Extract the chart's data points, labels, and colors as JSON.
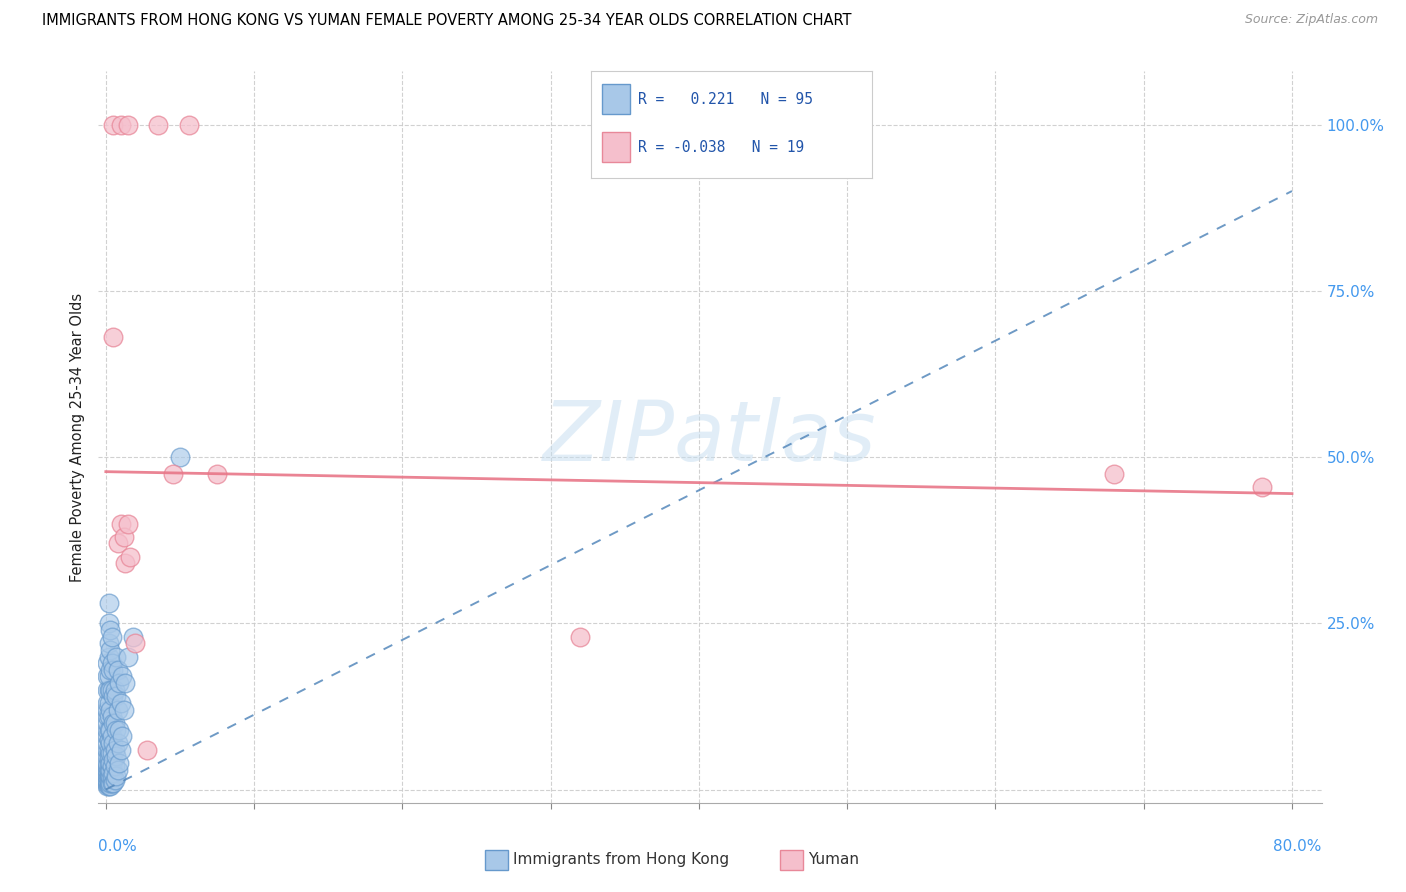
{
  "title": "IMMIGRANTS FROM HONG KONG VS YUMAN FEMALE POVERTY AMONG 25-34 YEAR OLDS CORRELATION CHART",
  "source": "Source: ZipAtlas.com",
  "ylabel": "Female Poverty Among 25-34 Year Olds",
  "ytick_labels": [
    "",
    "25.0%",
    "50.0%",
    "75.0%",
    "100.0%"
  ],
  "ytick_values": [
    0.0,
    0.25,
    0.5,
    0.75,
    1.0
  ],
  "xlim": [
    -0.005,
    0.82
  ],
  "ylim": [
    -0.02,
    1.08
  ],
  "R_blue": 0.221,
  "N_blue": 95,
  "R_pink": -0.038,
  "N_pink": 19,
  "blue_color": "#a8c8e8",
  "blue_edge": "#6699cc",
  "pink_color": "#f5bfcc",
  "pink_edge": "#e88899",
  "trend_blue_color": "#5588bb",
  "trend_pink_color": "#e87788",
  "watermark": "ZIPatlas",
  "trend_blue_x0": 0.0,
  "trend_blue_y0": 0.0,
  "trend_blue_x1": 0.8,
  "trend_blue_y1": 0.9,
  "trend_pink_x0": 0.0,
  "trend_pink_y0": 0.478,
  "trend_pink_x1": 0.8,
  "trend_pink_y1": 0.445,
  "blue_points": [
    [
      0.001,
      0.005
    ],
    [
      0.001,
      0.008
    ],
    [
      0.001,
      0.012
    ],
    [
      0.001,
      0.015
    ],
    [
      0.001,
      0.02
    ],
    [
      0.001,
      0.025
    ],
    [
      0.001,
      0.03
    ],
    [
      0.001,
      0.035
    ],
    [
      0.001,
      0.04
    ],
    [
      0.001,
      0.05
    ],
    [
      0.001,
      0.06
    ],
    [
      0.001,
      0.07
    ],
    [
      0.001,
      0.08
    ],
    [
      0.001,
      0.09
    ],
    [
      0.001,
      0.1
    ],
    [
      0.001,
      0.11
    ],
    [
      0.001,
      0.12
    ],
    [
      0.001,
      0.13
    ],
    [
      0.001,
      0.15
    ],
    [
      0.001,
      0.17
    ],
    [
      0.001,
      0.19
    ],
    [
      0.002,
      0.005
    ],
    [
      0.002,
      0.01
    ],
    [
      0.002,
      0.015
    ],
    [
      0.002,
      0.02
    ],
    [
      0.002,
      0.025
    ],
    [
      0.002,
      0.03
    ],
    [
      0.002,
      0.04
    ],
    [
      0.002,
      0.05
    ],
    [
      0.002,
      0.06
    ],
    [
      0.002,
      0.075
    ],
    [
      0.002,
      0.09
    ],
    [
      0.002,
      0.11
    ],
    [
      0.002,
      0.13
    ],
    [
      0.002,
      0.15
    ],
    [
      0.002,
      0.17
    ],
    [
      0.002,
      0.2
    ],
    [
      0.002,
      0.22
    ],
    [
      0.002,
      0.25
    ],
    [
      0.002,
      0.28
    ],
    [
      0.003,
      0.005
    ],
    [
      0.003,
      0.01
    ],
    [
      0.003,
      0.02
    ],
    [
      0.003,
      0.03
    ],
    [
      0.003,
      0.04
    ],
    [
      0.003,
      0.055
    ],
    [
      0.003,
      0.07
    ],
    [
      0.003,
      0.09
    ],
    [
      0.003,
      0.12
    ],
    [
      0.003,
      0.15
    ],
    [
      0.003,
      0.18
    ],
    [
      0.003,
      0.21
    ],
    [
      0.003,
      0.24
    ],
    [
      0.004,
      0.01
    ],
    [
      0.004,
      0.02
    ],
    [
      0.004,
      0.035
    ],
    [
      0.004,
      0.055
    ],
    [
      0.004,
      0.08
    ],
    [
      0.004,
      0.11
    ],
    [
      0.004,
      0.15
    ],
    [
      0.004,
      0.19
    ],
    [
      0.004,
      0.23
    ],
    [
      0.005,
      0.01
    ],
    [
      0.005,
      0.025
    ],
    [
      0.005,
      0.045
    ],
    [
      0.005,
      0.07
    ],
    [
      0.005,
      0.1
    ],
    [
      0.005,
      0.14
    ],
    [
      0.005,
      0.18
    ],
    [
      0.006,
      0.015
    ],
    [
      0.006,
      0.035
    ],
    [
      0.006,
      0.06
    ],
    [
      0.006,
      0.1
    ],
    [
      0.006,
      0.15
    ],
    [
      0.007,
      0.02
    ],
    [
      0.007,
      0.05
    ],
    [
      0.007,
      0.09
    ],
    [
      0.007,
      0.14
    ],
    [
      0.007,
      0.2
    ],
    [
      0.008,
      0.03
    ],
    [
      0.008,
      0.07
    ],
    [
      0.008,
      0.12
    ],
    [
      0.008,
      0.18
    ],
    [
      0.009,
      0.04
    ],
    [
      0.009,
      0.09
    ],
    [
      0.009,
      0.16
    ],
    [
      0.01,
      0.06
    ],
    [
      0.01,
      0.13
    ],
    [
      0.011,
      0.08
    ],
    [
      0.011,
      0.17
    ],
    [
      0.012,
      0.12
    ],
    [
      0.013,
      0.16
    ],
    [
      0.015,
      0.2
    ],
    [
      0.018,
      0.23
    ],
    [
      0.05,
      0.5
    ]
  ],
  "pink_points": [
    [
      0.005,
      1.0
    ],
    [
      0.01,
      1.0
    ],
    [
      0.015,
      1.0
    ],
    [
      0.035,
      1.0
    ],
    [
      0.056,
      1.0
    ],
    [
      0.005,
      0.68
    ],
    [
      0.008,
      0.37
    ],
    [
      0.01,
      0.4
    ],
    [
      0.012,
      0.38
    ],
    [
      0.013,
      0.34
    ],
    [
      0.015,
      0.4
    ],
    [
      0.016,
      0.35
    ],
    [
      0.02,
      0.22
    ],
    [
      0.028,
      0.06
    ],
    [
      0.045,
      0.475
    ],
    [
      0.075,
      0.475
    ],
    [
      0.32,
      0.23
    ],
    [
      0.68,
      0.475
    ],
    [
      0.78,
      0.455
    ]
  ]
}
